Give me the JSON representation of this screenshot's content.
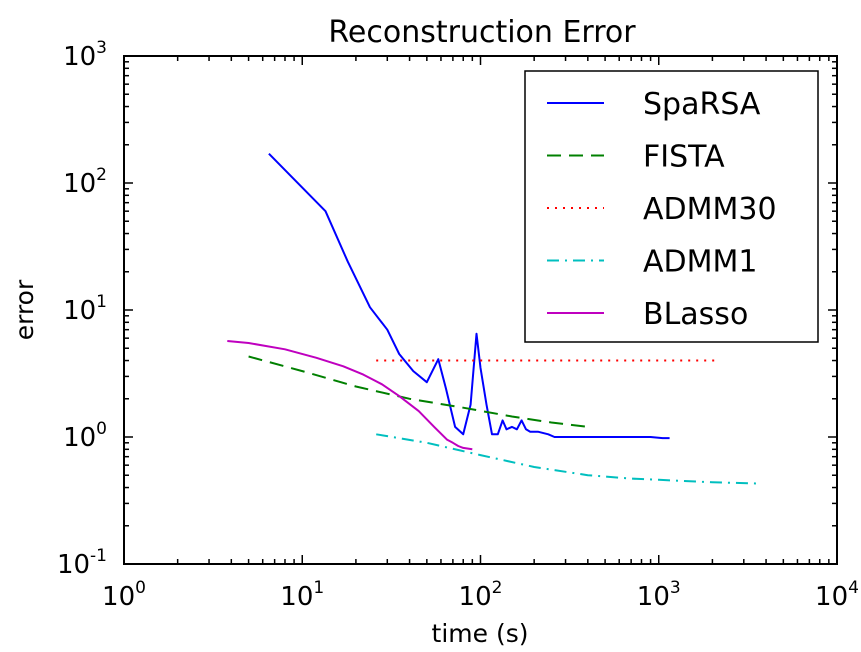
{
  "chart_data": {
    "type": "line",
    "title": "Reconstruction Error",
    "xlabel": "time (s)",
    "ylabel": "error",
    "xscale": "log",
    "yscale": "log",
    "xlim": [
      1,
      10000
    ],
    "ylim": [
      0.1,
      1000
    ],
    "x_ticks": [
      {
        "base": "10",
        "exp": "0"
      },
      {
        "base": "10",
        "exp": "1"
      },
      {
        "base": "10",
        "exp": "2"
      },
      {
        "base": "10",
        "exp": "3"
      },
      {
        "base": "10",
        "exp": "4"
      }
    ],
    "y_ticks": [
      {
        "base": "10",
        "exp": "-1"
      },
      {
        "base": "10",
        "exp": "0"
      },
      {
        "base": "10",
        "exp": "1"
      },
      {
        "base": "10",
        "exp": "2"
      },
      {
        "base": "10",
        "exp": "3"
      }
    ],
    "grid": false,
    "legend_position": "top-right",
    "series": [
      {
        "name": "SpaRSA",
        "color": "#0000ff",
        "style": "solid",
        "x": [
          6.5,
          13.5,
          18,
          24,
          30,
          35,
          42,
          50,
          58,
          64,
          72,
          80,
          88,
          95,
          100,
          108,
          116,
          125,
          133,
          140,
          150,
          160,
          170,
          180,
          190,
          210,
          240,
          260,
          290,
          330,
          400,
          500,
          700,
          900,
          1050,
          1100,
          1150
        ],
        "y": [
          170,
          60,
          24,
          10.5,
          7,
          4.5,
          3.3,
          2.7,
          4.1,
          2.4,
          1.2,
          1.05,
          1.8,
          6.5,
          3.5,
          1.8,
          1.05,
          1.05,
          1.35,
          1.15,
          1.2,
          1.15,
          1.35,
          1.15,
          1.1,
          1.1,
          1.05,
          1.0,
          1.0,
          1.0,
          1.0,
          1.0,
          1.0,
          1.0,
          0.98,
          0.98,
          0.98
        ]
      },
      {
        "name": "FISTA",
        "color": "#008000",
        "style": "dashed",
        "x": [
          5,
          10,
          20,
          40,
          80,
          150,
          250,
          400
        ],
        "y": [
          4.3,
          3.3,
          2.5,
          2.0,
          1.7,
          1.45,
          1.3,
          1.2
        ]
      },
      {
        "name": "ADMM30",
        "color": "#ff0000",
        "style": "dotted",
        "x": [
          26,
          100,
          500,
          2100
        ],
        "y": [
          4.0,
          4.0,
          4.0,
          4.0
        ]
      },
      {
        "name": "ADMM1",
        "color": "#00bfbf",
        "style": "dashdot",
        "x": [
          26,
          50,
          100,
          200,
          400,
          700,
          1000,
          2000,
          3600
        ],
        "y": [
          1.05,
          0.9,
          0.72,
          0.58,
          0.5,
          0.47,
          0.46,
          0.44,
          0.43
        ]
      },
      {
        "name": "BLasso",
        "color": "#bf00bf",
        "style": "solid",
        "x": [
          3.8,
          5,
          8,
          12,
          17,
          22,
          28,
          35,
          45,
          55,
          65,
          70,
          75,
          80,
          90
        ],
        "y": [
          5.7,
          5.5,
          4.9,
          4.2,
          3.6,
          3.1,
          2.6,
          2.1,
          1.6,
          1.2,
          0.95,
          0.9,
          0.85,
          0.82,
          0.8
        ]
      }
    ]
  }
}
